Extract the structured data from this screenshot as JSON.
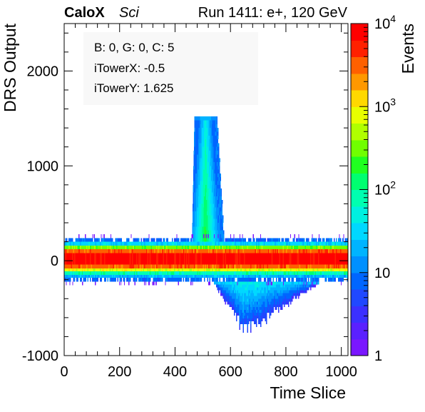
{
  "header": {
    "brand": "CaloX",
    "tag": "Sci",
    "run_info": "Run 1411: e+, 120 GeV"
  },
  "stats_box": {
    "lines": [
      "B: 0, G: 0, C: 5",
      "iTowerX: -0.5",
      "iTowerY: 1.625"
    ]
  },
  "chart_data": {
    "type": "heatmap",
    "title": "",
    "xlabel": "Time Slice",
    "ylabel": "DRS Output",
    "zlabel": "Events",
    "xlim": [
      0,
      1024
    ],
    "ylim": [
      -1000,
      2500
    ],
    "zlim": [
      1,
      10000
    ],
    "z_log_scale": true,
    "x_ticks": [
      "0",
      "200",
      "400",
      "600",
      "800",
      "1000"
    ],
    "y_ticks": [
      "-1000",
      "0",
      "1000",
      "2000"
    ],
    "z_tick_labels": [
      {
        "value": 10000,
        "base": "10",
        "exp": "4"
      },
      {
        "value": 1000,
        "base": "10",
        "exp": "3"
      },
      {
        "value": 100,
        "base": "10",
        "exp": "2"
      },
      {
        "value": 10,
        "base": "10",
        "exp": ""
      },
      {
        "value": 1,
        "base": "1",
        "exp": ""
      }
    ],
    "palette": [
      "#7a17ff",
      "#5a20ff",
      "#3b30ff",
      "#2048ff",
      "#0066ff",
      "#0090ff",
      "#00b4ff",
      "#00d8ff",
      "#00f0e0",
      "#00ffb0",
      "#00ff70",
      "#20ff20",
      "#70ff00",
      "#b0ff00",
      "#e8ff00",
      "#ffd800",
      "#ff9800",
      "#ff6000",
      "#ff2000",
      "#ff0000"
    ],
    "baseline_band": [
      {
        "y0": -220,
        "y1": -180,
        "level": 4
      },
      {
        "y0": -180,
        "y1": -150,
        "level": 6
      },
      {
        "y0": -150,
        "y1": -110,
        "level": 9
      },
      {
        "y0": -110,
        "y1": -80,
        "level": 14
      },
      {
        "y0": -80,
        "y1": -40,
        "level": 17
      },
      {
        "y0": -40,
        "y1": 80,
        "level": 19
      },
      {
        "y0": 80,
        "y1": 120,
        "level": 17
      },
      {
        "y0": 120,
        "y1": 160,
        "level": 12
      },
      {
        "y0": 160,
        "y1": 200,
        "level": 7
      },
      {
        "y0": 200,
        "y1": 240,
        "level": 4
      }
    ],
    "pulse_peak": {
      "x_bottom": [
        460,
        580
      ],
      "x_top": [
        470,
        550
      ],
      "y_range": [
        0,
        1520
      ],
      "center_x": 510
    },
    "undershoot": {
      "x_range": [
        540,
        920
      ],
      "center_x": 650,
      "min_y": -830
    }
  }
}
